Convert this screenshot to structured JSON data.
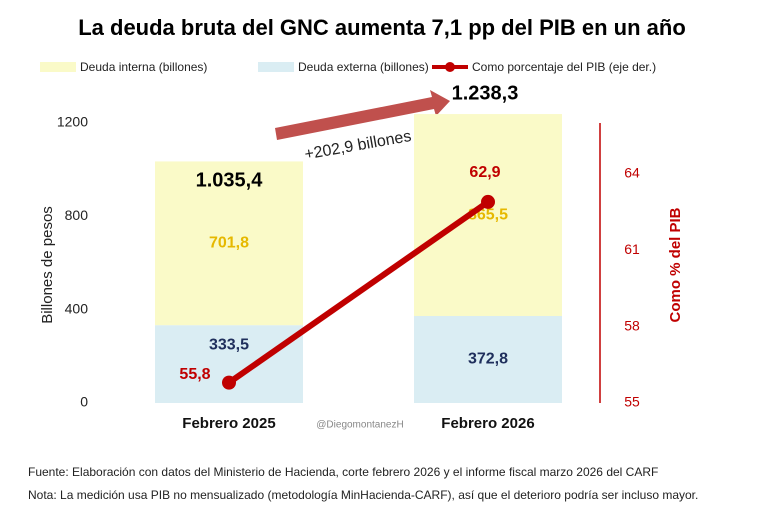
{
  "chart_data": {
    "type": "bar_line",
    "title": "La deuda bruta del GNC aumenta 7,1 pp del PIB en un año",
    "categories": [
      "Febrero 2025",
      "Febrero 2026"
    ],
    "series": [
      {
        "name": "Deuda interna (billones)",
        "type": "bar",
        "color": "#fafac8",
        "label_color": "#e6b800",
        "values": [
          701.8,
          865.5
        ],
        "value_labels": [
          "701,8",
          "865,5"
        ]
      },
      {
        "name": "Deuda externa (billones)",
        "type": "bar",
        "color": "#daedf3",
        "label_color": "#1f2f5c",
        "values": [
          333.5,
          372.8
        ],
        "value_labels": [
          "333,5",
          "372,8"
        ]
      },
      {
        "name": "Como porcentaje del PIB (eje der.)",
        "type": "line",
        "axis": "y2",
        "color": "#c00000",
        "values": [
          55.8,
          62.9
        ],
        "value_labels": [
          "55,8",
          "62,9"
        ]
      }
    ],
    "stack_order": [
      1,
      0
    ],
    "totals": {
      "values": [
        1035.4,
        1238.3
      ],
      "value_labels": [
        "1.035,4",
        "1.238,3"
      ]
    },
    "annotation": "+202,9 billones",
    "watermark": "@DiegomontanezH",
    "ylabel": "Billones de pesos",
    "y2label": "Como % del PIB",
    "ylim": [
      0,
      1200
    ],
    "yticks": [
      0,
      400,
      800,
      1200
    ],
    "y2lim": [
      55,
      66
    ],
    "y2ticks": [
      55,
      58,
      61,
      64
    ],
    "notes": [
      "Fuente: Elaboración con datos del Ministerio de Hacienda, corte febrero 2026 y el informe fiscal marzo 2026 del CARF",
      "Nota: La medición usa PIB no mensualizado (metodología MinHacienda-CARF), así que el deterioro podría ser incluso mayor."
    ]
  }
}
